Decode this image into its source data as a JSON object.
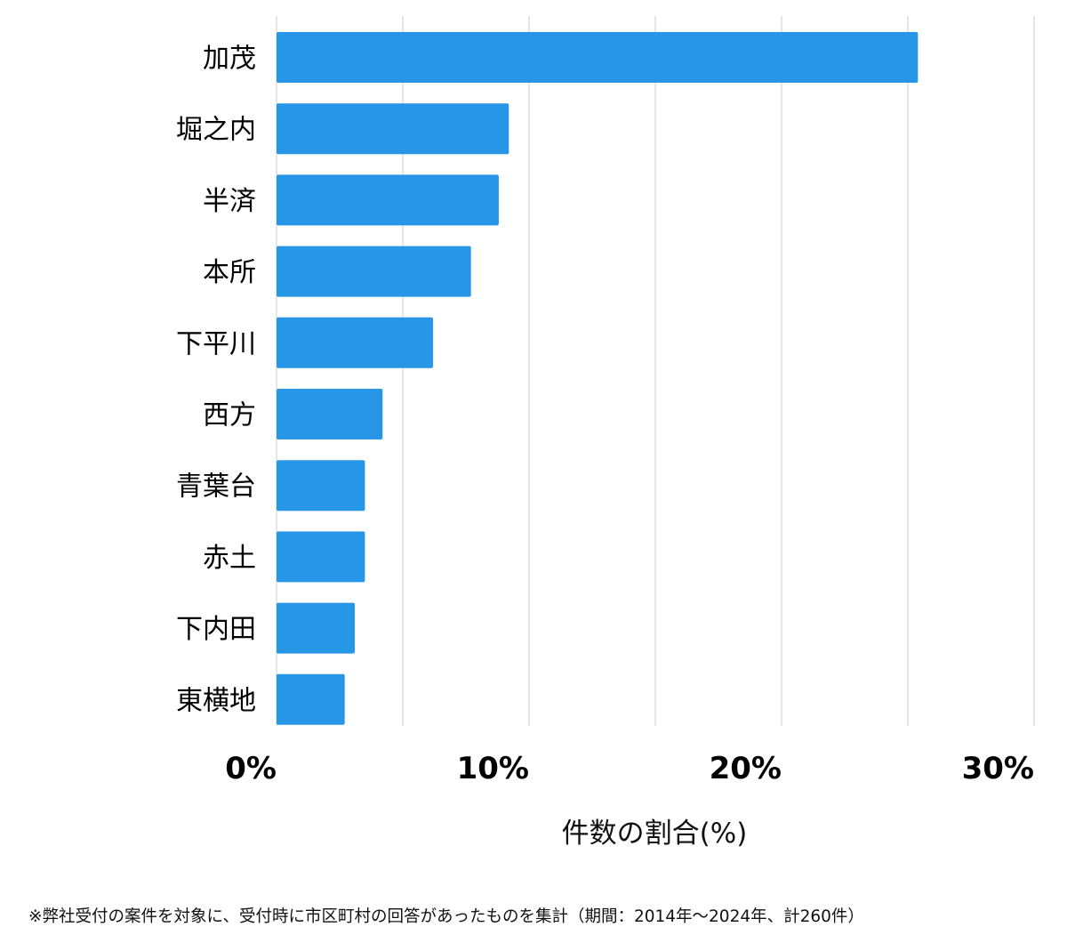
{
  "chart_data": {
    "type": "bar",
    "orientation": "horizontal",
    "categories": [
      "加茂",
      "堀之内",
      "半済",
      "本所",
      "下平川",
      "西方",
      "青葉台",
      "赤土",
      "下内田",
      "東横地"
    ],
    "values": [
      25.4,
      9.2,
      8.8,
      7.7,
      6.2,
      4.2,
      3.5,
      3.5,
      3.1,
      2.7
    ],
    "xlim": [
      0,
      30
    ],
    "x_ticks": [
      {
        "value": 0,
        "label": "0%"
      },
      {
        "value": 10,
        "label": "10%"
      },
      {
        "value": 20,
        "label": "20%"
      },
      {
        "value": 30,
        "label": "30%"
      }
    ],
    "xlabel": "件数の割合(%)",
    "ylabel": "",
    "title": "",
    "grid": true,
    "bar_color": "#2896e6",
    "grid_color": "#dddddd"
  },
  "footnote": "※弊社受付の案件を対象に、受付時に市区町村の回答があったものを集計（期間：2014年～2024年、計260件）"
}
